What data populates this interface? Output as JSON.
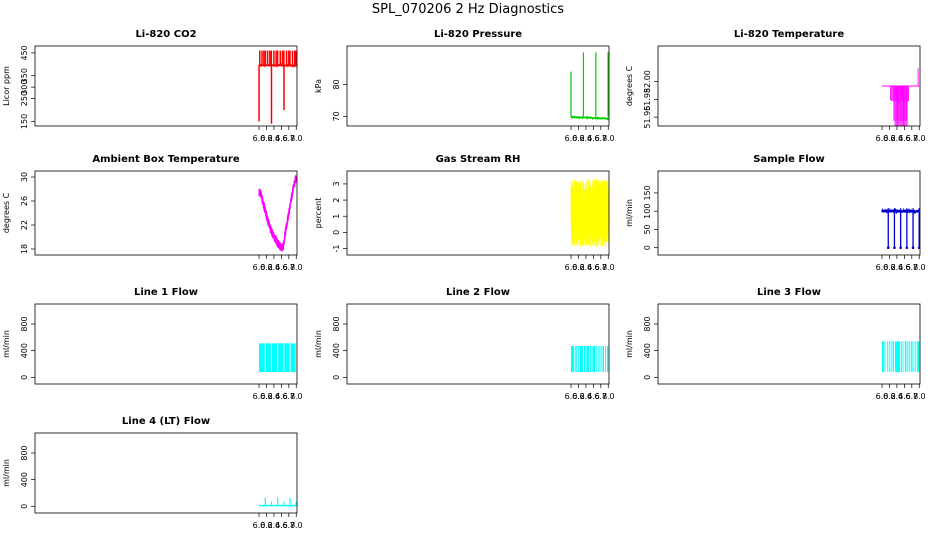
{
  "page_title": "SPL_070206  2 Hz Diagnostics",
  "chart_data": [
    {
      "type": "line",
      "title": "Li-820 CO2",
      "ylabel": "Licor ppm",
      "color": "#ff0000",
      "xlim": [
        -0.02,
        7.02
      ],
      "ylim": [
        130,
        480
      ],
      "x_ticks": [
        "6.0",
        "6.2",
        "6.4",
        "6.6",
        "6.8",
        "7.0"
      ],
      "x_tick_values": [
        6.0,
        6.2,
        6.4,
        6.6,
        6.8,
        7.0
      ],
      "y_ticks": [
        "150",
        "250",
        "300",
        "350",
        "450"
      ],
      "y_tick_values": [
        150,
        250,
        300,
        350,
        450
      ],
      "baseline": 395,
      "noise": 4,
      "spikes": [
        {
          "x": 6.0,
          "y": 150
        },
        {
          "x": 6.02,
          "y": 460
        },
        {
          "x": 6.08,
          "y": 460
        },
        {
          "x": 6.13,
          "y": 460
        },
        {
          "x": 6.17,
          "y": 460
        },
        {
          "x": 6.23,
          "y": 460
        },
        {
          "x": 6.29,
          "y": 460
        },
        {
          "x": 6.33,
          "y": 460
        },
        {
          "x": 6.334,
          "y": 140
        },
        {
          "x": 6.4,
          "y": 460
        },
        {
          "x": 6.46,
          "y": 460
        },
        {
          "x": 6.5,
          "y": 460
        },
        {
          "x": 6.57,
          "y": 460
        },
        {
          "x": 6.63,
          "y": 460
        },
        {
          "x": 6.667,
          "y": 460
        },
        {
          "x": 6.67,
          "y": 200
        },
        {
          "x": 6.74,
          "y": 460
        },
        {
          "x": 6.8,
          "y": 460
        },
        {
          "x": 6.83,
          "y": 460
        },
        {
          "x": 6.9,
          "y": 460
        },
        {
          "x": 6.96,
          "y": 460
        },
        {
          "x": 6.99,
          "y": 460
        }
      ]
    },
    {
      "type": "line",
      "title": "Li-820 Pressure",
      "ylabel": "kPa",
      "color": "#00cc00",
      "xlim": [
        -0.02,
        7.02
      ],
      "ylim": [
        67,
        92
      ],
      "x_ticks": [
        "6.0",
        "6.2",
        "6.4",
        "6.6",
        "6.8",
        "7.0"
      ],
      "x_tick_values": [
        6.0,
        6.2,
        6.4,
        6.6,
        6.8,
        7.0
      ],
      "y_ticks": [
        "70",
        "80"
      ],
      "y_tick_values": [
        70,
        80
      ],
      "baseline_start": 69.8,
      "baseline_end": 69.3,
      "noise": 0.15,
      "spikes": [
        {
          "x": 6.0,
          "y": 84
        },
        {
          "x": 6.333,
          "y": 90
        },
        {
          "x": 6.667,
          "y": 90
        },
        {
          "x": 6.995,
          "y": 90
        }
      ]
    },
    {
      "type": "line",
      "title": "Li-820 Temperature",
      "ylabel": "degrees C",
      "color": "#ff00ff",
      "xlim": [
        -0.02,
        7.02
      ],
      "ylim": [
        51.95,
        52.04
      ],
      "x_ticks": [
        "6.0",
        "6.2",
        "6.4",
        "6.6",
        "6.8",
        "7.0"
      ],
      "x_tick_values": [
        6.0,
        6.2,
        6.4,
        6.6,
        6.8,
        7.0
      ],
      "y_ticks": [
        "51.96",
        "51.98",
        "52.00"
      ],
      "y_tick_values": [
        51.96,
        51.98,
        52.0
      ],
      "levels": [
        {
          "x0": 6.0,
          "x1": 7.0,
          "y": 51.995
        },
        {
          "x0": 6.23,
          "x1": 6.245,
          "y": 51.979
        },
        {
          "x0": 6.26,
          "x1": 6.74,
          "y": 51.978
        },
        {
          "x0": 6.32,
          "x1": 6.69,
          "y": 51.956
        },
        {
          "x0": 6.35,
          "x1": 6.69,
          "y": 51.95
        },
        {
          "x0": 6.97,
          "x1": 7.0,
          "y": 52.015
        }
      ],
      "base_value": 51.995
    },
    {
      "type": "line",
      "title": "Ambient Box Temperature",
      "ylabel": "degrees C",
      "color": "#ff00ff",
      "xlim": [
        -0.02,
        7.02
      ],
      "ylim": [
        17,
        31
      ],
      "x_ticks": [
        "6.0",
        "6.2",
        "6.4",
        "6.6",
        "6.8",
        "7.0"
      ],
      "x_tick_values": [
        6.0,
        6.2,
        6.4,
        6.6,
        6.8,
        7.0
      ],
      "y_ticks": [
        "18",
        "22",
        "26",
        "30"
      ],
      "y_tick_values": [
        18,
        22,
        26,
        30
      ],
      "curve": [
        {
          "x": 6.0,
          "y": 27.5
        },
        {
          "x": 6.05,
          "y": 27.2
        },
        {
          "x": 6.1,
          "y": 26
        },
        {
          "x": 6.2,
          "y": 23.5
        },
        {
          "x": 6.3,
          "y": 21.5
        },
        {
          "x": 6.4,
          "y": 20
        },
        {
          "x": 6.5,
          "y": 19
        },
        {
          "x": 6.6,
          "y": 18.2
        },
        {
          "x": 6.65,
          "y": 18.5
        },
        {
          "x": 6.7,
          "y": 20.5
        },
        {
          "x": 6.8,
          "y": 24
        },
        {
          "x": 6.9,
          "y": 27.5
        },
        {
          "x": 6.97,
          "y": 29.5
        },
        {
          "x": 7.0,
          "y": 29.8
        }
      ],
      "noise": 0.7
    },
    {
      "type": "line",
      "title": "Gas Stream RH",
      "ylabel": "percent",
      "color": "#ffff00",
      "xlim": [
        -0.02,
        7.02
      ],
      "ylim": [
        -1.4,
        3.8
      ],
      "x_ticks": [
        "6.0",
        "6.2",
        "6.4",
        "6.6",
        "6.8",
        "7.0"
      ],
      "x_tick_values": [
        6.0,
        6.2,
        6.4,
        6.6,
        6.8,
        7.0
      ],
      "y_ticks": [
        "-1",
        "0",
        "1",
        "2",
        "3"
      ],
      "y_tick_values": [
        -1,
        0,
        1,
        2,
        3
      ],
      "band_low": -0.9,
      "band_high": 3.3
    },
    {
      "type": "line",
      "title": "Sample Flow",
      "ylabel": "ml/min",
      "color": "#0000cc",
      "xlim": [
        -0.02,
        7.02
      ],
      "ylim": [
        -20,
        210
      ],
      "x_ticks": [
        "6.0",
        "6.2",
        "6.4",
        "6.6",
        "6.8",
        "7.0"
      ],
      "x_tick_values": [
        6.0,
        6.2,
        6.4,
        6.6,
        6.8,
        7.0
      ],
      "y_ticks": [
        "0",
        "50",
        "100",
        "150"
      ],
      "y_tick_values": [
        0,
        50,
        100,
        150
      ],
      "baseline": 100,
      "noise": 4,
      "dips": [
        6.167,
        6.333,
        6.5,
        6.667,
        6.833,
        6.997
      ]
    },
    {
      "type": "line",
      "title": "Line 1 Flow",
      "ylabel": "ml/min",
      "color": "#00ffff",
      "xlim": [
        -0.02,
        7.02
      ],
      "ylim": [
        -100,
        1100
      ],
      "x_ticks": [
        "6.0",
        "6.2",
        "6.4",
        "6.6",
        "6.8",
        "7.0"
      ],
      "x_tick_values": [
        6.0,
        6.2,
        6.4,
        6.6,
        6.8,
        7.0
      ],
      "y_ticks": [
        "0",
        "400",
        "800"
      ],
      "y_tick_values": [
        0,
        400,
        800
      ],
      "band_low": 80,
      "band_high": 510,
      "gaps": [
        6.167,
        6.333,
        6.5,
        6.667,
        6.833,
        6.997
      ]
    },
    {
      "type": "line",
      "title": "Line 2 Flow",
      "ylabel": "ml/min",
      "color": "#00ffff",
      "xlim": [
        -0.02,
        7.02
      ],
      "ylim": [
        -100,
        1100
      ],
      "x_ticks": [
        "6.0",
        "6.2",
        "6.4",
        "6.6",
        "6.8",
        "7.0"
      ],
      "x_tick_values": [
        6.0,
        6.2,
        6.4,
        6.6,
        6.8,
        7.0
      ],
      "y_ticks": [
        "0",
        "400",
        "800"
      ],
      "y_tick_values": [
        0,
        400,
        800
      ],
      "band_low": 80,
      "band_high": 470,
      "gaps": [
        6.1,
        6.167,
        6.22,
        6.333,
        6.4,
        6.5,
        6.56,
        6.667,
        6.72,
        6.78,
        6.833,
        6.9,
        6.95
      ]
    },
    {
      "type": "line",
      "title": "Line 3 Flow",
      "ylabel": "ml/min",
      "color": "#00ffff",
      "xlim": [
        -0.02,
        7.02
      ],
      "ylim": [
        -100,
        1100
      ],
      "x_ticks": [
        "6.0",
        "6.2",
        "6.4",
        "6.6",
        "6.8",
        "7.0"
      ],
      "x_tick_values": [
        6.0,
        6.2,
        6.4,
        6.6,
        6.8,
        7.0
      ],
      "y_ticks": [
        "0",
        "400",
        "800"
      ],
      "y_tick_values": [
        0,
        400,
        800
      ],
      "band_low": 80,
      "band_high": 540,
      "gaps": [
        6.08,
        6.12,
        6.167,
        6.22,
        6.27,
        6.333,
        6.5,
        6.56,
        6.6,
        6.667,
        6.72,
        6.77,
        6.833,
        6.88,
        6.93
      ]
    },
    {
      "type": "line",
      "title": "Line 4 (LT) Flow",
      "ylabel": "ml/min",
      "color": "#00ffff",
      "xlim": [
        -0.02,
        7.02
      ],
      "ylim": [
        -100,
        1100
      ],
      "x_ticks": [
        "6.0",
        "6.2",
        "6.4",
        "6.6",
        "6.8",
        "7.0"
      ],
      "x_tick_values": [
        6.0,
        6.2,
        6.4,
        6.6,
        6.8,
        7.0
      ],
      "y_ticks": [
        "0",
        "400",
        "800"
      ],
      "y_tick_values": [
        0,
        400,
        800
      ],
      "baseline": 10,
      "spikes": [
        {
          "x": 6.167,
          "y": 130
        },
        {
          "x": 6.333,
          "y": 70
        },
        {
          "x": 6.5,
          "y": 130
        },
        {
          "x": 6.667,
          "y": 70
        },
        {
          "x": 6.833,
          "y": 130
        },
        {
          "x": 6.997,
          "y": 70
        }
      ]
    }
  ]
}
